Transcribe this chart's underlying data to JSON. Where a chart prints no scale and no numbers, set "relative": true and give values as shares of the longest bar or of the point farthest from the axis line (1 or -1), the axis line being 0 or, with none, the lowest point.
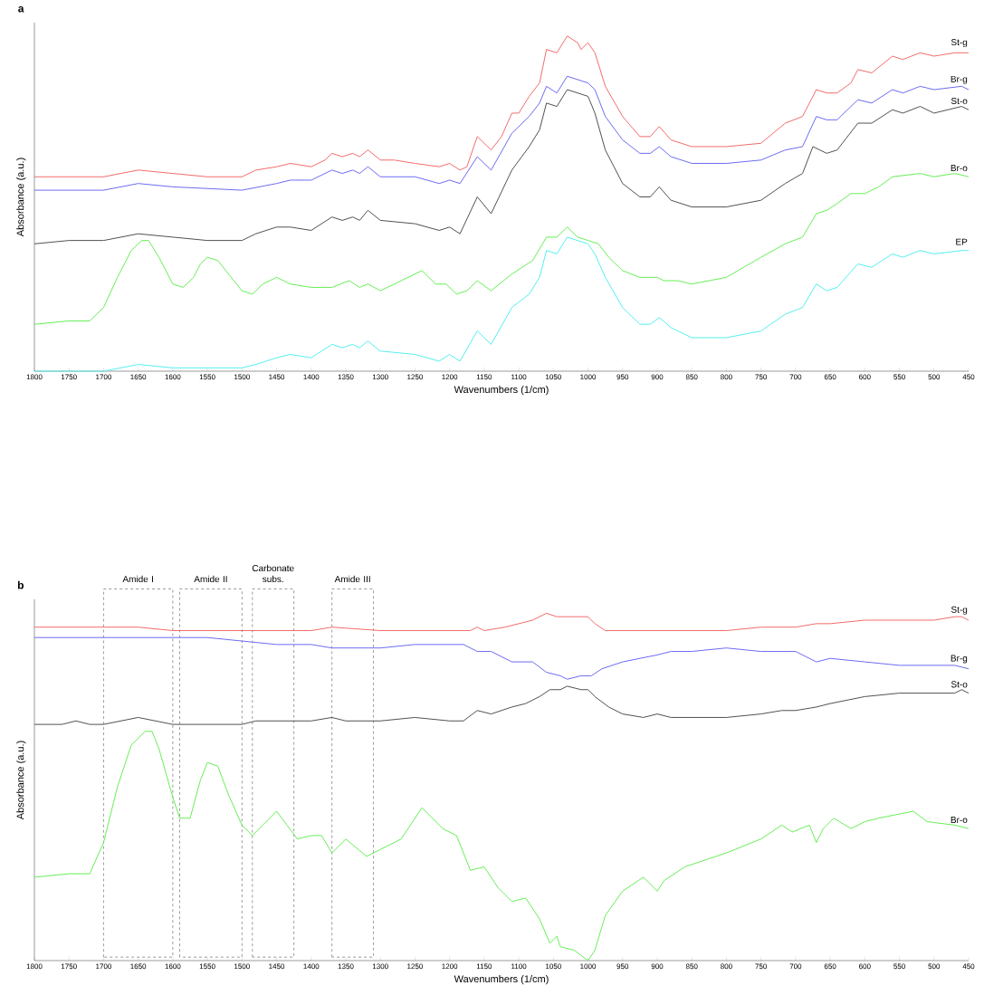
{
  "chart_data": [
    {
      "type": "line",
      "title": "a",
      "xlabel": "Wavenumbers (1/cm)",
      "ylabel": "Absorbance (a.u.)",
      "relative": true,
      "tick_labels": "x",
      "xlim": [
        1800,
        450
      ],
      "xticks": [
        1800,
        1750,
        1700,
        1650,
        1600,
        1550,
        1500,
        1450,
        1400,
        1350,
        1300,
        1250,
        1200,
        1150,
        1100,
        1050,
        1000,
        950,
        900,
        850,
        800,
        750,
        700,
        650,
        600,
        550,
        500,
        450
      ],
      "series": [
        {
          "name": "St-g",
          "color": "#f26b6b",
          "x": [
            1800,
            1750,
            1700,
            1650,
            1600,
            1550,
            1500,
            1480,
            1450,
            1430,
            1400,
            1380,
            1370,
            1355,
            1340,
            1330,
            1318,
            1300,
            1280,
            1250,
            1215,
            1200,
            1185,
            1175,
            1160,
            1140,
            1125,
            1110,
            1100,
            1085,
            1070,
            1060,
            1045,
            1030,
            1015,
            1010,
            1000,
            990,
            975,
            950,
            925,
            910,
            897,
            880,
            850,
            800,
            750,
            715,
            690,
            670,
            655,
            640,
            620,
            610,
            590,
            560,
            545,
            520,
            500,
            470,
            460,
            450
          ],
          "values": [
            0.58,
            0.58,
            0.58,
            0.6,
            0.59,
            0.58,
            0.58,
            0.6,
            0.61,
            0.62,
            0.61,
            0.63,
            0.65,
            0.64,
            0.65,
            0.64,
            0.66,
            0.63,
            0.63,
            0.62,
            0.61,
            0.62,
            0.6,
            0.61,
            0.7,
            0.66,
            0.7,
            0.77,
            0.77,
            0.82,
            0.86,
            0.96,
            0.95,
            1,
            0.98,
            0.96,
            0.98,
            0.95,
            0.85,
            0.76,
            0.7,
            0.7,
            0.73,
            0.69,
            0.67,
            0.67,
            0.68,
            0.74,
            0.76,
            0.84,
            0.83,
            0.83,
            0.86,
            0.9,
            0.89,
            0.94,
            0.93,
            0.95,
            0.94,
            0.95,
            0.95,
            0.95
          ]
        },
        {
          "name": "Br-g",
          "color": "#6b6bf2",
          "x": [
            1800,
            1700,
            1650,
            1600,
            1500,
            1450,
            1430,
            1400,
            1370,
            1355,
            1340,
            1330,
            1318,
            1300,
            1250,
            1215,
            1200,
            1185,
            1160,
            1140,
            1110,
            1085,
            1070,
            1060,
            1045,
            1030,
            1015,
            1000,
            990,
            975,
            950,
            925,
            910,
            897,
            880,
            850,
            800,
            750,
            715,
            690,
            670,
            655,
            640,
            610,
            590,
            560,
            545,
            520,
            500,
            460,
            450
          ],
          "values": [
            0.54,
            0.54,
            0.56,
            0.55,
            0.54,
            0.56,
            0.57,
            0.57,
            0.6,
            0.59,
            0.6,
            0.59,
            0.61,
            0.58,
            0.58,
            0.56,
            0.57,
            0.56,
            0.64,
            0.6,
            0.71,
            0.76,
            0.8,
            0.85,
            0.83,
            0.88,
            0.87,
            0.86,
            0.84,
            0.76,
            0.69,
            0.65,
            0.65,
            0.67,
            0.64,
            0.62,
            0.62,
            0.63,
            0.66,
            0.67,
            0.76,
            0.75,
            0.75,
            0.81,
            0.8,
            0.84,
            0.83,
            0.85,
            0.84,
            0.85,
            0.84
          ]
        },
        {
          "name": "St-o",
          "color": "#505050",
          "x": [
            1800,
            1750,
            1700,
            1650,
            1600,
            1550,
            1500,
            1480,
            1450,
            1430,
            1400,
            1370,
            1355,
            1340,
            1330,
            1318,
            1300,
            1250,
            1215,
            1200,
            1185,
            1160,
            1140,
            1110,
            1085,
            1070,
            1060,
            1045,
            1030,
            1015,
            1000,
            990,
            975,
            950,
            925,
            910,
            897,
            880,
            850,
            800,
            750,
            715,
            690,
            675,
            655,
            640,
            610,
            590,
            560,
            545,
            520,
            500,
            460,
            450
          ],
          "values": [
            0.38,
            0.39,
            0.39,
            0.41,
            0.4,
            0.39,
            0.39,
            0.41,
            0.43,
            0.43,
            0.42,
            0.46,
            0.45,
            0.46,
            0.45,
            0.48,
            0.45,
            0.44,
            0.42,
            0.43,
            0.41,
            0.52,
            0.47,
            0.6,
            0.67,
            0.72,
            0.8,
            0.79,
            0.84,
            0.83,
            0.82,
            0.77,
            0.66,
            0.56,
            0.52,
            0.52,
            0.55,
            0.51,
            0.49,
            0.49,
            0.51,
            0.56,
            0.59,
            0.67,
            0.65,
            0.66,
            0.74,
            0.74,
            0.78,
            0.77,
            0.79,
            0.77,
            0.79,
            0.78
          ]
        },
        {
          "name": "Br-o",
          "color": "#66ee55",
          "x": [
            1800,
            1750,
            1720,
            1700,
            1680,
            1660,
            1645,
            1635,
            1620,
            1600,
            1585,
            1570,
            1560,
            1550,
            1535,
            1500,
            1485,
            1470,
            1450,
            1430,
            1400,
            1370,
            1345,
            1330,
            1318,
            1300,
            1270,
            1240,
            1220,
            1205,
            1190,
            1175,
            1160,
            1140,
            1110,
            1080,
            1060,
            1045,
            1030,
            1015,
            1000,
            985,
            970,
            950,
            925,
            900,
            890,
            870,
            850,
            800,
            750,
            715,
            690,
            670,
            655,
            640,
            620,
            600,
            580,
            560,
            520,
            500,
            470,
            450
          ],
          "values": [
            0.14,
            0.15,
            0.15,
            0.19,
            0.28,
            0.36,
            0.39,
            0.39,
            0.34,
            0.26,
            0.25,
            0.28,
            0.32,
            0.34,
            0.33,
            0.24,
            0.23,
            0.26,
            0.28,
            0.26,
            0.25,
            0.25,
            0.27,
            0.25,
            0.26,
            0.24,
            0.27,
            0.3,
            0.26,
            0.26,
            0.23,
            0.24,
            0.27,
            0.24,
            0.29,
            0.33,
            0.4,
            0.4,
            0.43,
            0.4,
            0.39,
            0.38,
            0.34,
            0.3,
            0.28,
            0.28,
            0.27,
            0.27,
            0.26,
            0.28,
            0.34,
            0.38,
            0.4,
            0.47,
            0.48,
            0.5,
            0.53,
            0.53,
            0.55,
            0.58,
            0.59,
            0.58,
            0.59,
            0.58
          ]
        },
        {
          "name": "EP",
          "color": "#55eeee",
          "x": [
            1800,
            1700,
            1650,
            1600,
            1500,
            1480,
            1450,
            1430,
            1400,
            1370,
            1355,
            1340,
            1330,
            1318,
            1300,
            1250,
            1215,
            1200,
            1185,
            1160,
            1140,
            1110,
            1085,
            1070,
            1060,
            1045,
            1030,
            1015,
            1000,
            990,
            975,
            950,
            925,
            910,
            897,
            880,
            850,
            800,
            750,
            715,
            690,
            670,
            655,
            640,
            610,
            590,
            560,
            545,
            520,
            500,
            460,
            450
          ],
          "values": [
            0,
            0,
            0.02,
            0.01,
            0.01,
            0.02,
            0.04,
            0.05,
            0.04,
            0.08,
            0.07,
            0.08,
            0.07,
            0.09,
            0.06,
            0.05,
            0.03,
            0.05,
            0.03,
            0.12,
            0.08,
            0.19,
            0.23,
            0.28,
            0.36,
            0.35,
            0.4,
            0.39,
            0.38,
            0.35,
            0.28,
            0.19,
            0.14,
            0.14,
            0.16,
            0.13,
            0.1,
            0.1,
            0.12,
            0.17,
            0.19,
            0.26,
            0.24,
            0.25,
            0.32,
            0.31,
            0.35,
            0.34,
            0.36,
            0.35,
            0.36,
            0.36
          ]
        }
      ]
    },
    {
      "type": "line",
      "title": "b",
      "xlabel": "Wavenumbers (1/cm)",
      "ylabel": "Absorbance (a.u.)",
      "relative": true,
      "tick_labels": "x",
      "xlim": [
        1800,
        450
      ],
      "xticks": [
        1800,
        1750,
        1700,
        1650,
        1600,
        1550,
        1500,
        1450,
        1400,
        1350,
        1300,
        1250,
        1200,
        1150,
        1100,
        1050,
        1000,
        950,
        900,
        850,
        800,
        750,
        700,
        650,
        600,
        550,
        500,
        450
      ],
      "bands": [
        {
          "axis": "x",
          "from": 1700,
          "to": 1600,
          "label": "Amide I",
          "color": "#000000"
        },
        {
          "axis": "x",
          "from": 1590,
          "to": 1500,
          "label": "Amide II",
          "color": "#000000"
        },
        {
          "axis": "x",
          "from": 1485,
          "to": 1425,
          "label": "Carbonate subs.",
          "color": "#000000"
        },
        {
          "axis": "x",
          "from": 1370,
          "to": 1310,
          "label": "Amide III",
          "color": "#000000"
        }
      ],
      "series": [
        {
          "name": "St-g",
          "color": "#f26b6b",
          "x": [
            1800,
            1700,
            1650,
            1600,
            1500,
            1400,
            1370,
            1300,
            1200,
            1170,
            1160,
            1150,
            1120,
            1100,
            1080,
            1060,
            1045,
            1030,
            1010,
            1000,
            990,
            975,
            950,
            900,
            850,
            800,
            750,
            700,
            670,
            650,
            600,
            550,
            500,
            470,
            460,
            450
          ],
          "values": [
            0.96,
            0.96,
            0.96,
            0.95,
            0.95,
            0.95,
            0.96,
            0.95,
            0.95,
            0.95,
            0.96,
            0.95,
            0.96,
            0.97,
            0.98,
            1,
            0.99,
            0.99,
            0.99,
            0.99,
            0.97,
            0.95,
            0.95,
            0.95,
            0.95,
            0.95,
            0.96,
            0.96,
            0.97,
            0.97,
            0.98,
            0.98,
            0.98,
            0.99,
            0.99,
            0.98
          ]
        },
        {
          "name": "Br-g",
          "color": "#6b6bf2",
          "x": [
            1800,
            1750,
            1700,
            1650,
            1600,
            1550,
            1500,
            1450,
            1400,
            1370,
            1340,
            1310,
            1300,
            1250,
            1200,
            1180,
            1160,
            1140,
            1110,
            1080,
            1060,
            1040,
            1030,
            1010,
            995,
            980,
            950,
            900,
            880,
            850,
            800,
            750,
            700,
            670,
            650,
            600,
            550,
            500,
            470,
            450
          ],
          "values": [
            0.93,
            0.93,
            0.93,
            0.93,
            0.93,
            0.93,
            0.92,
            0.91,
            0.91,
            0.9,
            0.9,
            0.9,
            0.9,
            0.91,
            0.91,
            0.91,
            0.89,
            0.89,
            0.86,
            0.86,
            0.83,
            0.82,
            0.81,
            0.82,
            0.82,
            0.84,
            0.86,
            0.88,
            0.89,
            0.89,
            0.9,
            0.89,
            0.89,
            0.86,
            0.87,
            0.86,
            0.85,
            0.85,
            0.85,
            0.84
          ]
        },
        {
          "name": "St-o",
          "color": "#505050",
          "x": [
            1800,
            1760,
            1740,
            1720,
            1700,
            1650,
            1600,
            1550,
            1500,
            1480,
            1450,
            1400,
            1370,
            1350,
            1300,
            1250,
            1200,
            1180,
            1160,
            1140,
            1110,
            1090,
            1070,
            1055,
            1040,
            1030,
            1010,
            1000,
            990,
            970,
            950,
            920,
            900,
            880,
            850,
            800,
            750,
            720,
            700,
            670,
            650,
            600,
            550,
            500,
            470,
            460,
            450
          ],
          "values": [
            0.68,
            0.68,
            0.69,
            0.68,
            0.68,
            0.7,
            0.68,
            0.68,
            0.68,
            0.69,
            0.69,
            0.69,
            0.7,
            0.69,
            0.69,
            0.7,
            0.69,
            0.69,
            0.72,
            0.71,
            0.73,
            0.74,
            0.76,
            0.78,
            0.78,
            0.79,
            0.78,
            0.78,
            0.76,
            0.73,
            0.71,
            0.7,
            0.71,
            0.7,
            0.7,
            0.7,
            0.71,
            0.72,
            0.72,
            0.73,
            0.74,
            0.76,
            0.77,
            0.77,
            0.77,
            0.78,
            0.77
          ]
        },
        {
          "name": "Br-o",
          "color": "#66ee55",
          "x": [
            1800,
            1750,
            1720,
            1700,
            1680,
            1660,
            1640,
            1630,
            1620,
            1600,
            1590,
            1575,
            1560,
            1550,
            1535,
            1520,
            1500,
            1485,
            1470,
            1450,
            1435,
            1420,
            1400,
            1385,
            1370,
            1350,
            1320,
            1300,
            1270,
            1240,
            1210,
            1190,
            1170,
            1150,
            1130,
            1110,
            1090,
            1070,
            1055,
            1045,
            1040,
            1020,
            1000,
            990,
            975,
            950,
            920,
            900,
            890,
            860,
            800,
            750,
            720,
            705,
            680,
            670,
            660,
            645,
            620,
            600,
            580,
            555,
            530,
            510,
            470,
            450
          ],
          "values": [
            0.24,
            0.25,
            0.25,
            0.34,
            0.5,
            0.62,
            0.66,
            0.66,
            0.61,
            0.47,
            0.41,
            0.41,
            0.52,
            0.57,
            0.56,
            0.48,
            0.39,
            0.36,
            0.39,
            0.43,
            0.39,
            0.35,
            0.36,
            0.36,
            0.31,
            0.35,
            0.3,
            0.32,
            0.35,
            0.44,
            0.38,
            0.36,
            0.26,
            0.27,
            0.21,
            0.17,
            0.18,
            0.12,
            0.05,
            0.07,
            0.04,
            0.03,
            0,
            0.03,
            0.13,
            0.2,
            0.24,
            0.2,
            0.23,
            0.27,
            0.31,
            0.35,
            0.39,
            0.37,
            0.39,
            0.34,
            0.38,
            0.41,
            0.38,
            0.4,
            0.41,
            0.42,
            0.43,
            0.4,
            0.39,
            0.38
          ]
        }
      ]
    }
  ]
}
